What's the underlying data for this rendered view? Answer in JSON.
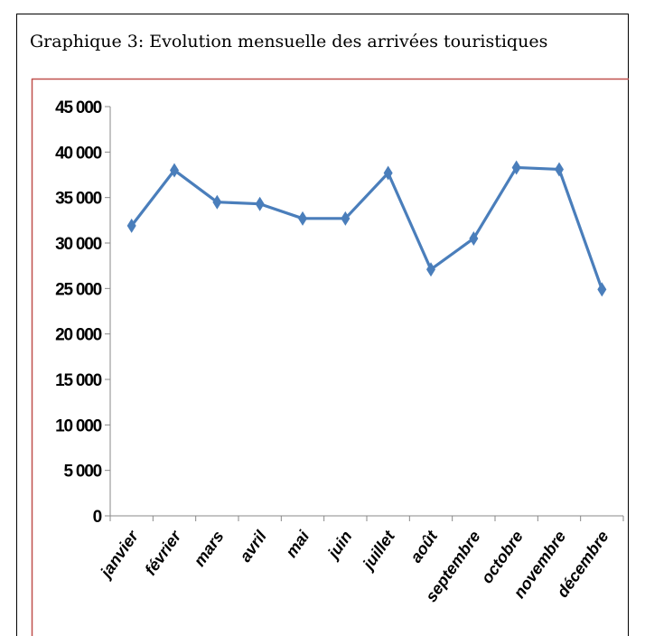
{
  "chart_data": {
    "type": "line",
    "title": "Graphique 3: Evolution mensuelle des arrivées touristiques",
    "categories": [
      "janvier",
      "février",
      "mars",
      "avril",
      "mai",
      "juin",
      "juillet",
      "août",
      "septembre",
      "octobre",
      "novembre",
      "décembre"
    ],
    "series": [
      {
        "name": "arrivées touristiques",
        "color": "#4a7ebb",
        "values": [
          31900,
          38000,
          34500,
          34300,
          32700,
          32700,
          37700,
          27100,
          30500,
          38300,
          38100,
          24900
        ]
      }
    ],
    "ylim": [
      0,
      45000
    ],
    "yticks": [
      0,
      {
        "value": 5000,
        "label": "5 000"
      },
      {
        "value": 10000,
        "label": "10 000"
      },
      {
        "value": 15000,
        "label": "15 000"
      },
      {
        "value": 20000,
        "label": "20 000"
      },
      {
        "value": 25000,
        "label": "25 000"
      },
      {
        "value": 30000,
        "label": "30 000"
      },
      {
        "value": 35000,
        "label": "35 000"
      },
      {
        "value": 40000,
        "label": "40 000"
      },
      {
        "value": 45000,
        "label": "45 000"
      }
    ],
    "grid": false
  }
}
